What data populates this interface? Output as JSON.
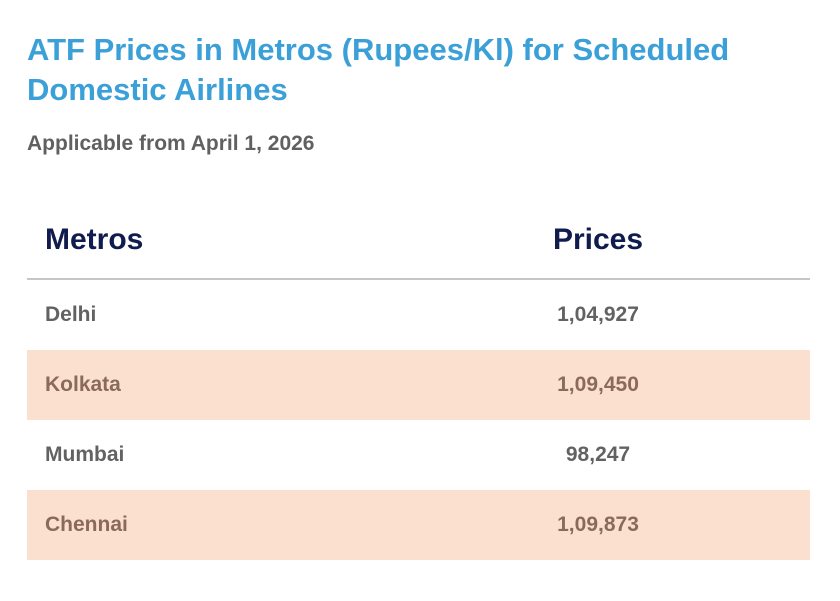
{
  "header": {
    "title": "ATF Prices in Metros (Rupees/Kl) for Scheduled Domestic Airlines",
    "subtitle": "Applicable from April 1, 2026"
  },
  "table": {
    "columns": [
      "Metros",
      "Prices"
    ],
    "rows": [
      {
        "metro": "Delhi",
        "price": "1,04,927"
      },
      {
        "metro": "Kolkata",
        "price": "1,09,450"
      },
      {
        "metro": "Mumbai",
        "price": "98,247"
      },
      {
        "metro": "Chennai",
        "price": "1,09,873"
      }
    ]
  },
  "colors": {
    "title": "#3ba0d8",
    "header_text": "#0f1c4d",
    "row_shade": "#fbe0d0"
  }
}
